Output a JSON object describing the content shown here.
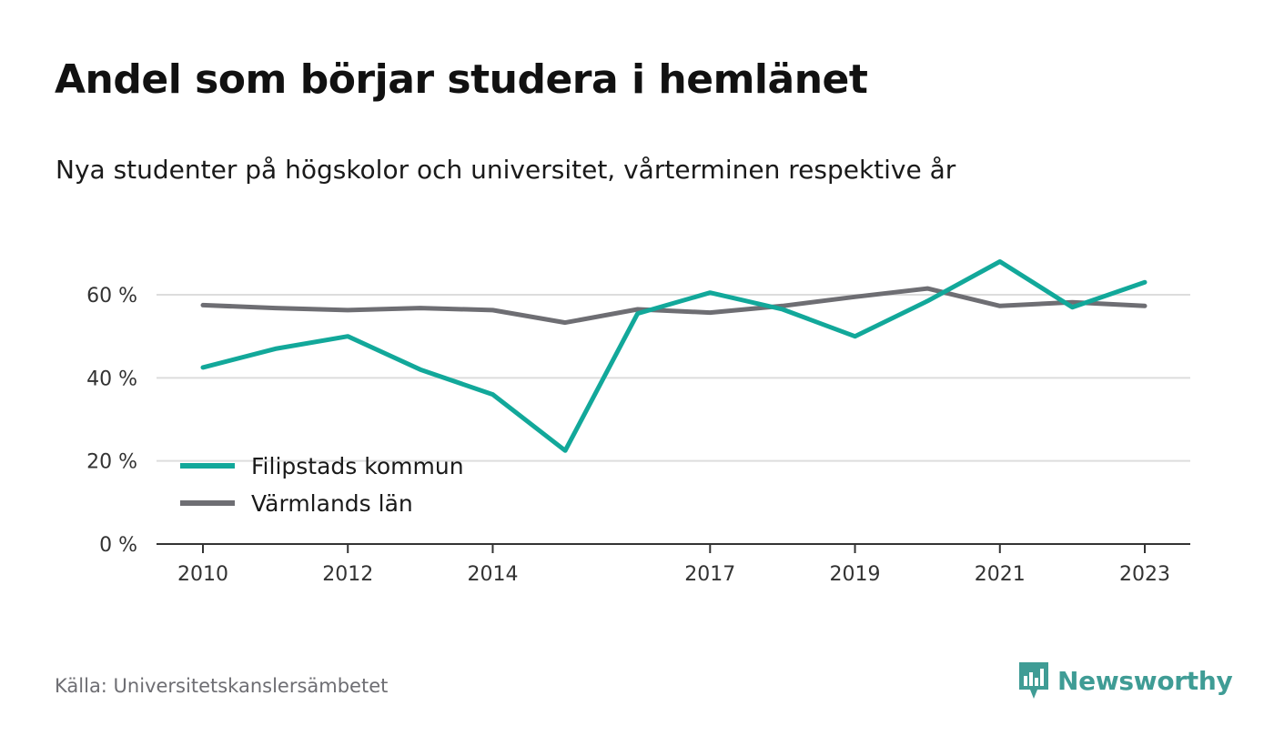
{
  "header": {
    "title": "Andel som börjar studera i hemlänet",
    "subtitle": "Nya studenter på högskolor och universitet, vårterminen respektive år"
  },
  "footer": {
    "source": "Källa: Universitetskanslersämbetet",
    "brand": "Newsworthy"
  },
  "chart_data": {
    "type": "line",
    "title": "Andel som börjar studera i hemlänet",
    "subtitle": "Nya studenter på högskolor och universitet, vårterminen respektive år",
    "x": [
      2010,
      2011,
      2012,
      2013,
      2014,
      2015,
      2016,
      2017,
      2018,
      2019,
      2020,
      2021,
      2022,
      2023
    ],
    "x_tick_values": [
      2010,
      2012,
      2014,
      2017,
      2019,
      2021,
      2023
    ],
    "x_tick_labels": [
      "2010",
      "2012",
      "2014",
      "2017",
      "2019",
      "2021",
      "2023"
    ],
    "y_tick_values": [
      0,
      20,
      40,
      60
    ],
    "y_tick_labels": [
      "0 %",
      "20 %",
      "40 %",
      "60 %"
    ],
    "xlim": [
      2009.5,
      2023.6
    ],
    "ylim": [
      0,
      60
    ],
    "grid": true,
    "legend_position": "bottom-left",
    "series": [
      {
        "name": "Filipstads kommun",
        "color": "#12a89a",
        "values": [
          42.5,
          47,
          50,
          42,
          36,
          22.5,
          55.5,
          60.5,
          56.5,
          50,
          58.5,
          68,
          57,
          63
        ]
      },
      {
        "name": "Värmlands län",
        "color": "#6e6e73",
        "values": [
          57.5,
          56.8,
          56.3,
          56.8,
          56.3,
          53.3,
          56.5,
          55.7,
          57.3,
          59.5,
          61.5,
          57.3,
          58.2,
          57.3
        ]
      }
    ],
    "grid_color": "#dddddd",
    "axis_color": "#333333"
  }
}
